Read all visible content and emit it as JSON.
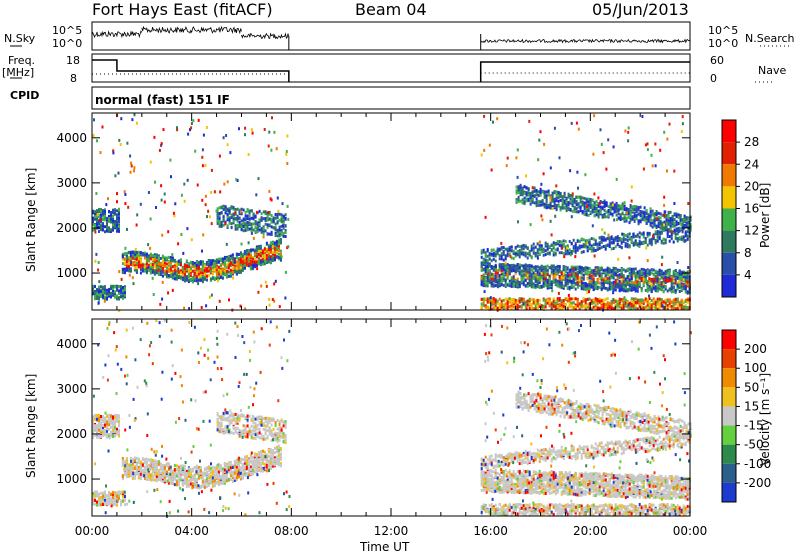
{
  "header": {
    "title": "Fort Hays East (fitACF)",
    "beam": "Beam 04",
    "date": "05/Jun/2013"
  },
  "status_panels": {
    "nsky_label": "N.Sky",
    "nsky_ticks": [
      "10^5",
      "10^0"
    ],
    "nsearch_label": "N.Search",
    "freq_label": "Freq.",
    "freq_unit": "[MHz]",
    "freq_ticks": [
      "18",
      "8"
    ],
    "nave_label": "Nave",
    "nave_ticks": [
      "60",
      "0"
    ],
    "cpid_label": "CPID",
    "cpid_text": "normal (fast) 151 IF"
  },
  "x_axis": {
    "label": "Time UT",
    "ticks": [
      "00:00",
      "04:00",
      "08:00",
      "12:00",
      "16:00",
      "20:00",
      "00:00"
    ]
  },
  "colorbars": {
    "power": {
      "label": "Power [dB]",
      "ticks": [
        "4",
        "8",
        "12",
        "16",
        "20",
        "24",
        "28"
      ],
      "colors": [
        "#1e2bd6",
        "#2a4fa8",
        "#2d7a5e",
        "#3fb04a",
        "#f2c500",
        "#f07a00",
        "#e02000",
        "#ff0000"
      ]
    },
    "velocity": {
      "label": "Velocity [m s⁻¹]",
      "ticks": [
        "200",
        "100",
        "50",
        "15",
        "-15",
        "-50",
        "-100",
        "-200"
      ],
      "colors": [
        "#1e3bd0",
        "#2a5f8c",
        "#2d8a4a",
        "#64d040",
        "#c8c8c8",
        "#f0c020",
        "#f08a00",
        "#e84000",
        "#ff0000"
      ]
    }
  },
  "chart_data": [
    {
      "type": "heatmap",
      "title": "",
      "xlabel": "Time UT",
      "ylabel": "Slant Range [km]",
      "xlim": [
        0,
        24
      ],
      "ylim": [
        180,
        4550
      ],
      "y_ticks": [
        "1000",
        "2000",
        "3000",
        "4000"
      ],
      "quantity": "Power [dB]",
      "data_gaps_hours": [
        [
          7.9,
          15.6
        ]
      ],
      "bands": [
        {
          "t": [
            0,
            1.2
          ],
          "range_km": [
            2000,
            2500
          ],
          "level": "12-16 dB"
        },
        {
          "t": [
            1.2,
            7.5
          ],
          "range_km": [
            900,
            1500
          ],
          "level": "16-28 dB"
        },
        {
          "t": [
            15.6,
            24
          ],
          "range_km": [
            800,
            1400
          ],
          "level": "8-20 dB"
        },
        {
          "t": [
            15.6,
            24
          ],
          "range_km": [
            1800,
            2600
          ],
          "level": "4-16 dB"
        }
      ]
    },
    {
      "type": "heatmap",
      "title": "",
      "xlabel": "Time UT",
      "ylabel": "Slant Range [km]",
      "xlim": [
        0,
        24
      ],
      "ylim": [
        180,
        4550
      ],
      "y_ticks": [
        "1000",
        "2000",
        "3000",
        "4000"
      ],
      "quantity": "Velocity [m s^-1]",
      "data_gaps_hours": [
        [
          7.9,
          15.6
        ]
      ],
      "bands": [
        {
          "t": [
            0,
            7.5
          ],
          "range_km": [
            500,
            2600
          ],
          "level": "-15 to 15 m/s (grey)"
        },
        {
          "t": [
            15.6,
            24
          ],
          "range_km": [
            700,
            2600
          ],
          "level": "-15 to 15 m/s (grey)"
        }
      ]
    }
  ]
}
